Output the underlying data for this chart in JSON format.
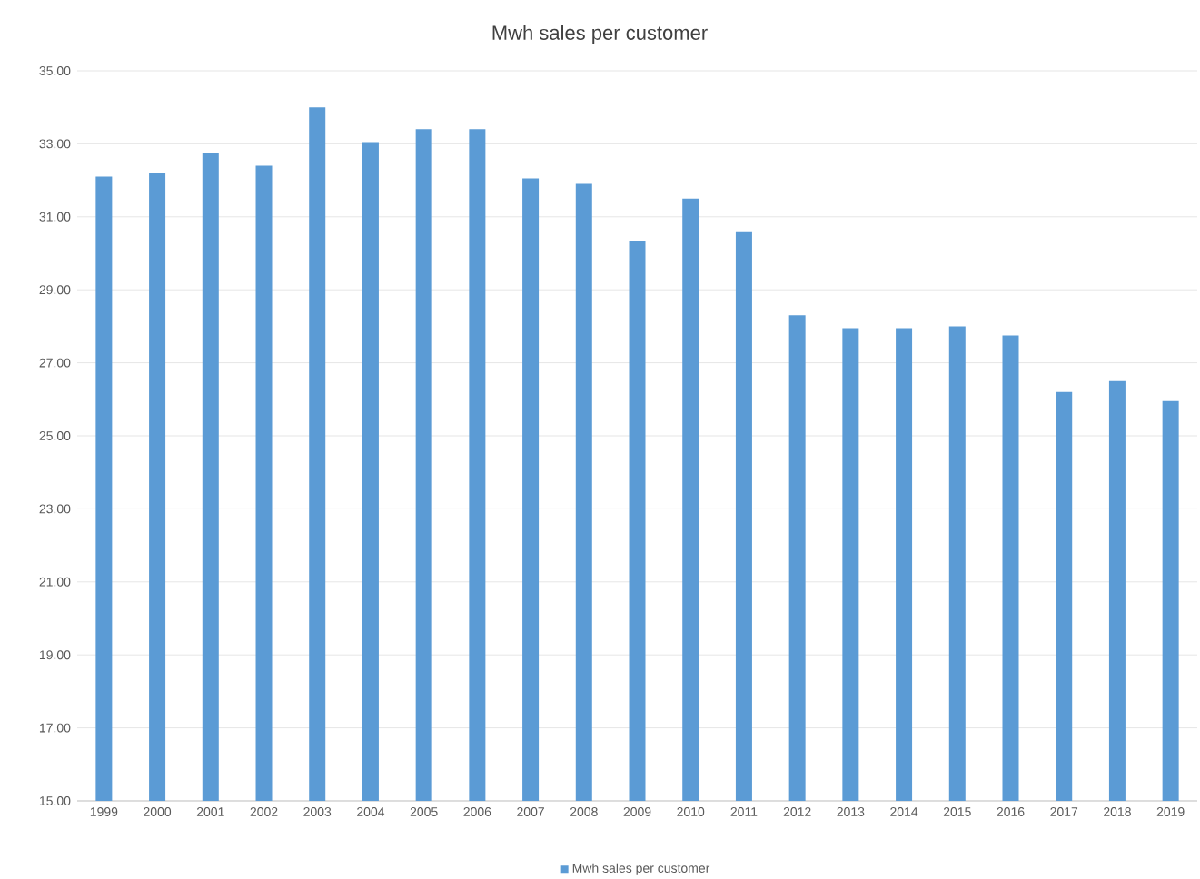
{
  "chart_data": {
    "type": "bar",
    "title": "Mwh sales per customer",
    "categories": [
      "1999",
      "2000",
      "2001",
      "2002",
      "2003",
      "2004",
      "2005",
      "2006",
      "2007",
      "2008",
      "2009",
      "2010",
      "2011",
      "2012",
      "2013",
      "2014",
      "2015",
      "2016",
      "2017",
      "2018",
      "2019"
    ],
    "series": [
      {
        "name": "Mwh sales per customer",
        "color": "#5b9bd5",
        "values": [
          32.1,
          32.2,
          32.75,
          32.4,
          34.0,
          33.05,
          33.4,
          33.4,
          32.05,
          31.9,
          30.35,
          31.5,
          30.6,
          28.3,
          27.95,
          27.95,
          28.0,
          27.75,
          26.2,
          26.5,
          25.95
        ]
      }
    ],
    "ylim": [
      15,
      35
    ],
    "yticks": [
      {
        "value": 15,
        "label": "15.00"
      },
      {
        "value": 17,
        "label": "17.00"
      },
      {
        "value": 19,
        "label": "19.00"
      },
      {
        "value": 21,
        "label": "21.00"
      },
      {
        "value": 23,
        "label": "23.00"
      },
      {
        "value": 25,
        "label": "25.00"
      },
      {
        "value": 27,
        "label": "27.00"
      },
      {
        "value": 29,
        "label": "29.00"
      },
      {
        "value": 31,
        "label": "31.00"
      },
      {
        "value": 33,
        "label": "33.00"
      },
      {
        "value": 35,
        "label": "35.00"
      }
    ],
    "grid": "y",
    "legend": "bottom"
  }
}
